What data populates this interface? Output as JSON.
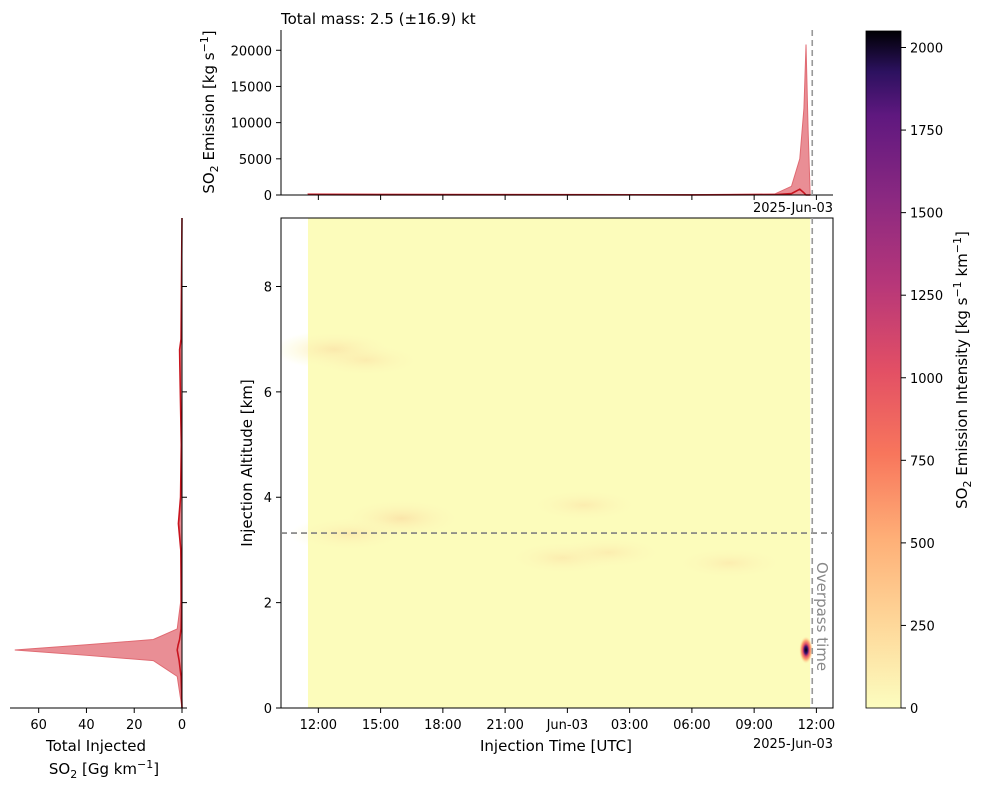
{
  "top_title": "Total mass: 2.5 (±16.9) kt",
  "date_label": "2025-Jun-03",
  "overpass_label": "Overpass time",
  "colors": {
    "emission_fill": "#e8888f",
    "emission_line": "#c8141e",
    "refline": "#808080",
    "bg_field": "#fcfcbb"
  },
  "chart_data": [
    {
      "type": "heatmap",
      "name": "main",
      "xlabel": "Injection Time [UTC]",
      "ylabel": "Injection Altitude [km]",
      "x_ticks": [
        "12:00",
        "15:00",
        "18:00",
        "21:00",
        "Jun-03",
        "03:00",
        "06:00",
        "09:00",
        "12:00"
      ],
      "x_tick_hours": [
        12,
        15,
        18,
        21,
        24,
        27,
        30,
        33,
        36
      ],
      "xlim_hours": [
        10.2,
        36.8
      ],
      "field_range_hours": [
        11.5,
        35.7
      ],
      "ylim": [
        0,
        9.3
      ],
      "y_ticks": [
        0,
        2,
        4,
        6,
        8
      ],
      "overpass_hour": 35.8,
      "ref_altitude": 3.32,
      "blobs": [
        {
          "t": 35.5,
          "z": 1.1,
          "intensity": 2050
        },
        {
          "t": 12.8,
          "z": 6.8,
          "intensity": 18
        },
        {
          "t": 14.3,
          "z": 6.6,
          "intensity": 10
        },
        {
          "t": 16.0,
          "z": 3.6,
          "intensity": 22
        },
        {
          "t": 13.5,
          "z": 3.3,
          "intensity": 12
        },
        {
          "t": 24.8,
          "z": 3.85,
          "intensity": 10
        },
        {
          "t": 23.8,
          "z": 2.85,
          "intensity": 12
        },
        {
          "t": 26.0,
          "z": 2.95,
          "intensity": 9
        },
        {
          "t": 31.8,
          "z": 2.75,
          "intensity": 9
        }
      ]
    },
    {
      "type": "area",
      "name": "top",
      "ylabel": "SO2 Emission [kg s⁻¹]",
      "y_ticks": [
        0,
        5000,
        10000,
        15000,
        20000
      ],
      "ylim": [
        0,
        22800
      ],
      "x_hours": [
        11.5,
        15,
        20,
        25,
        30,
        34.0,
        34.8,
        35.2,
        35.4,
        35.5,
        35.6,
        35.7
      ],
      "y_upper": [
        180,
        140,
        100,
        80,
        60,
        150,
        1200,
        5000,
        12000,
        20800,
        9000,
        0
      ],
      "y_mean": [
        40,
        30,
        25,
        20,
        15,
        40,
        200,
        800,
        300,
        0,
        0,
        0
      ]
    },
    {
      "type": "area",
      "name": "left",
      "xlabel_line1": "Total Injected",
      "xlabel_line2": "SO2 [Gg km⁻¹]",
      "x_ticks": [
        60,
        40,
        20,
        0
      ],
      "xlim": [
        72,
        0
      ],
      "ylim": [
        0,
        9.3
      ],
      "z": [
        0,
        0.6,
        0.9,
        1.0,
        1.1,
        1.2,
        1.3,
        1.5,
        2.0,
        3.0,
        3.5,
        4.0,
        5.0,
        6.5,
        6.8,
        7.0,
        9.3
      ],
      "x_upper": [
        0,
        2,
        12,
        40,
        70,
        40,
        12,
        2,
        0.6,
        0.5,
        1.0,
        0.5,
        0.2,
        0.8,
        0.8,
        0.3,
        0
      ],
      "x_mean": [
        0,
        0.4,
        1.2,
        1.6,
        2.0,
        1.6,
        1.0,
        0.4,
        0.2,
        0.5,
        1.5,
        0.6,
        0.3,
        0.9,
        1.0,
        0.4,
        0
      ]
    },
    {
      "type": "colorbar",
      "name": "colorbar",
      "label": "SO2 Emission Intensity [kg s⁻¹ km⁻¹]",
      "ticks": [
        0,
        250,
        500,
        750,
        1000,
        1250,
        1500,
        1750,
        2000
      ],
      "range": [
        0,
        2050
      ],
      "colormap": "magma_r"
    }
  ]
}
